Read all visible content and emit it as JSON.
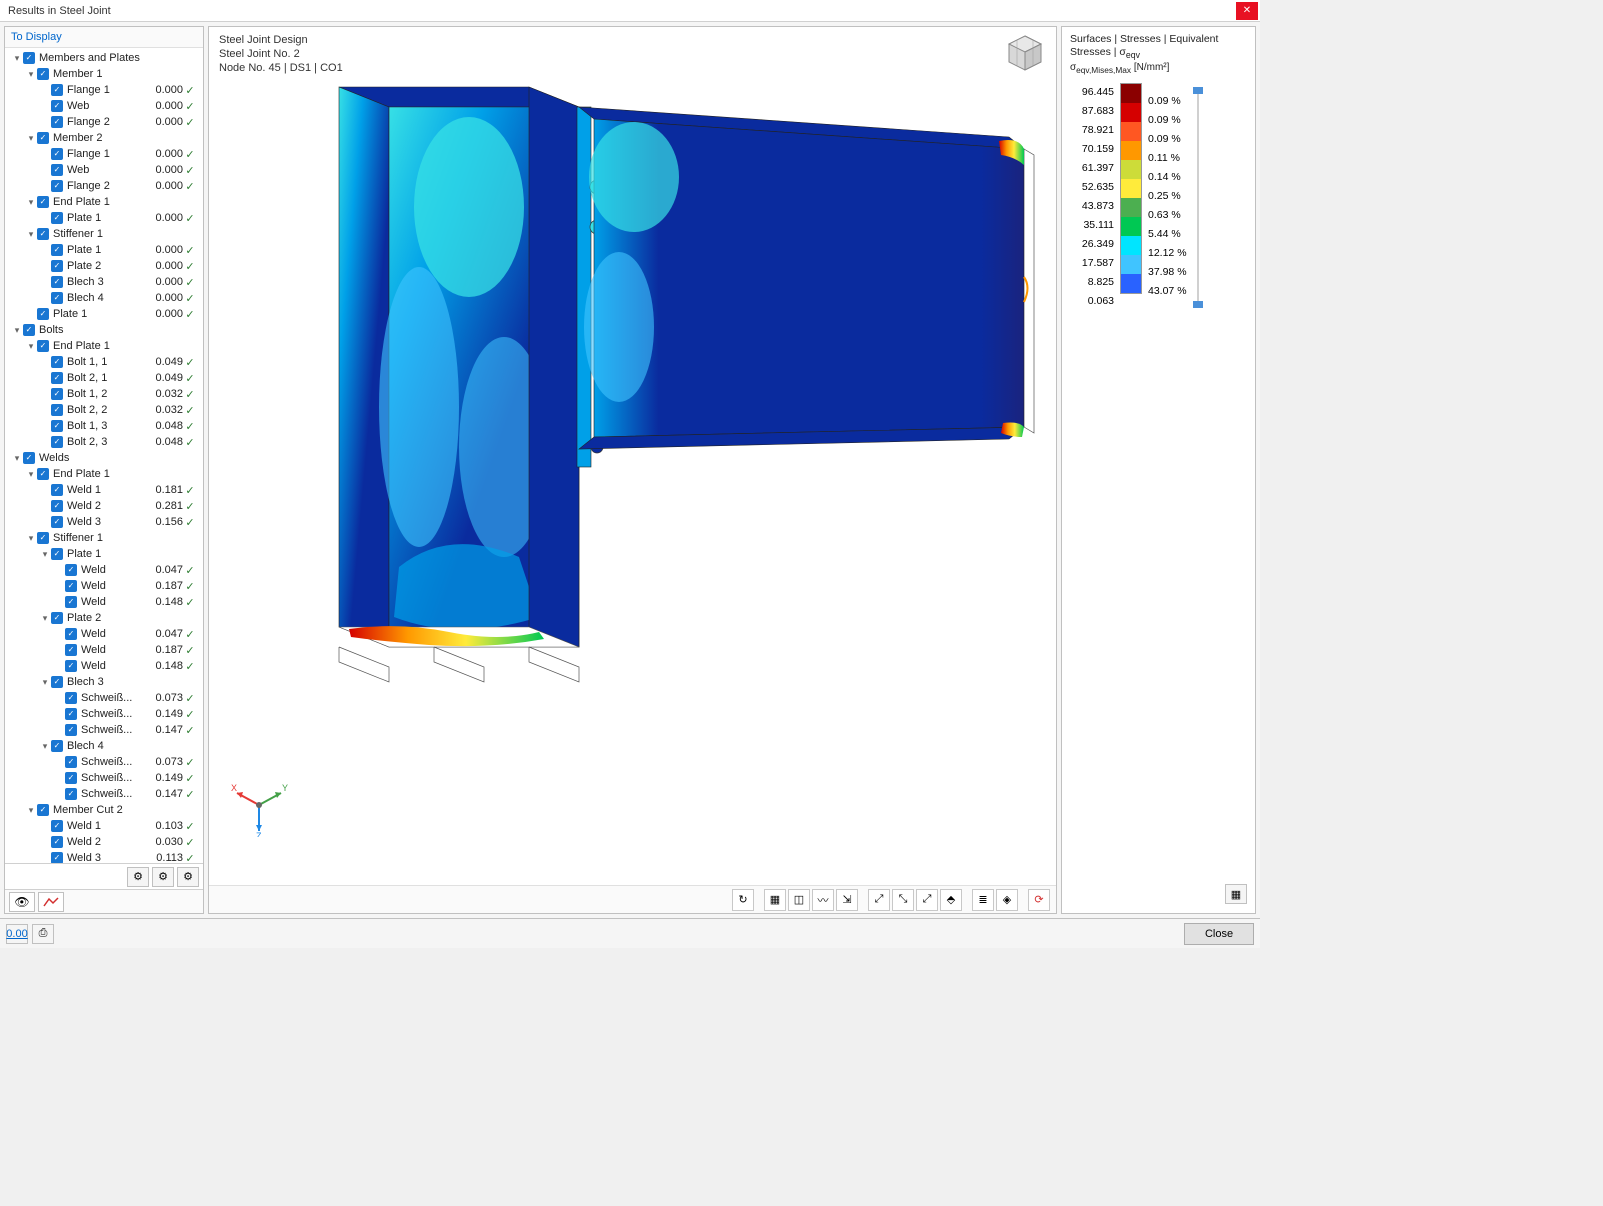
{
  "window": {
    "title": "Results in Steel Joint",
    "closeLabel": "Close"
  },
  "leftPanel": {
    "header": "To Display",
    "tree": [
      {
        "d": 0,
        "exp": "▾",
        "label": "Members and Plates"
      },
      {
        "d": 1,
        "exp": "▾",
        "label": "Member 1"
      },
      {
        "d": 2,
        "label": "Flange 1",
        "val": "0.000",
        "ok": true
      },
      {
        "d": 2,
        "label": "Web",
        "val": "0.000",
        "ok": true
      },
      {
        "d": 2,
        "label": "Flange 2",
        "val": "0.000",
        "ok": true
      },
      {
        "d": 1,
        "exp": "▾",
        "label": "Member 2"
      },
      {
        "d": 2,
        "label": "Flange 1",
        "val": "0.000",
        "ok": true
      },
      {
        "d": 2,
        "label": "Web",
        "val": "0.000",
        "ok": true
      },
      {
        "d": 2,
        "label": "Flange 2",
        "val": "0.000",
        "ok": true
      },
      {
        "d": 1,
        "exp": "▾",
        "label": "End Plate 1"
      },
      {
        "d": 2,
        "label": "Plate 1",
        "val": "0.000",
        "ok": true
      },
      {
        "d": 1,
        "exp": "▾",
        "label": "Stiffener 1"
      },
      {
        "d": 2,
        "label": "Plate 1",
        "val": "0.000",
        "ok": true
      },
      {
        "d": 2,
        "label": "Plate 2",
        "val": "0.000",
        "ok": true
      },
      {
        "d": 2,
        "label": "Blech 3",
        "val": "0.000",
        "ok": true
      },
      {
        "d": 2,
        "label": "Blech 4",
        "val": "0.000",
        "ok": true
      },
      {
        "d": 1,
        "label": "Plate 1",
        "val": "0.000",
        "ok": true
      },
      {
        "d": 0,
        "exp": "▾",
        "label": "Bolts"
      },
      {
        "d": 1,
        "exp": "▾",
        "label": "End Plate 1"
      },
      {
        "d": 2,
        "label": "Bolt 1, 1",
        "val": "0.049",
        "ok": true
      },
      {
        "d": 2,
        "label": "Bolt 2, 1",
        "val": "0.049",
        "ok": true
      },
      {
        "d": 2,
        "label": "Bolt 1, 2",
        "val": "0.032",
        "ok": true
      },
      {
        "d": 2,
        "label": "Bolt 2, 2",
        "val": "0.032",
        "ok": true
      },
      {
        "d": 2,
        "label": "Bolt 1, 3",
        "val": "0.048",
        "ok": true
      },
      {
        "d": 2,
        "label": "Bolt 2, 3",
        "val": "0.048",
        "ok": true
      },
      {
        "d": 0,
        "exp": "▾",
        "label": "Welds"
      },
      {
        "d": 1,
        "exp": "▾",
        "label": "End Plate 1"
      },
      {
        "d": 2,
        "label": "Weld 1",
        "val": "0.181",
        "ok": true
      },
      {
        "d": 2,
        "label": "Weld 2",
        "val": "0.281",
        "ok": true
      },
      {
        "d": 2,
        "label": "Weld 3",
        "val": "0.156",
        "ok": true
      },
      {
        "d": 1,
        "exp": "▾",
        "label": "Stiffener 1"
      },
      {
        "d": 2,
        "exp": "▾",
        "label": "Plate 1"
      },
      {
        "d": 3,
        "label": "Weld",
        "val": "0.047",
        "ok": true
      },
      {
        "d": 3,
        "label": "Weld",
        "val": "0.187",
        "ok": true
      },
      {
        "d": 3,
        "label": "Weld",
        "val": "0.148",
        "ok": true
      },
      {
        "d": 2,
        "exp": "▾",
        "label": "Plate 2"
      },
      {
        "d": 3,
        "label": "Weld",
        "val": "0.047",
        "ok": true
      },
      {
        "d": 3,
        "label": "Weld",
        "val": "0.187",
        "ok": true
      },
      {
        "d": 3,
        "label": "Weld",
        "val": "0.148",
        "ok": true
      },
      {
        "d": 2,
        "exp": "▾",
        "label": "Blech 3"
      },
      {
        "d": 3,
        "label": "Schweiß...",
        "val": "0.073",
        "ok": true
      },
      {
        "d": 3,
        "label": "Schweiß...",
        "val": "0.149",
        "ok": true
      },
      {
        "d": 3,
        "label": "Schweiß...",
        "val": "0.147",
        "ok": true
      },
      {
        "d": 2,
        "exp": "▾",
        "label": "Blech 4"
      },
      {
        "d": 3,
        "label": "Schweiß...",
        "val": "0.073",
        "ok": true
      },
      {
        "d": 3,
        "label": "Schweiß...",
        "val": "0.149",
        "ok": true
      },
      {
        "d": 3,
        "label": "Schweiß...",
        "val": "0.147",
        "ok": true
      },
      {
        "d": 1,
        "exp": "▾",
        "label": "Member Cut 2"
      },
      {
        "d": 2,
        "label": "Weld 1",
        "val": "0.103",
        "ok": true
      },
      {
        "d": 2,
        "label": "Weld 2",
        "val": "0.030",
        "ok": true
      },
      {
        "d": 2,
        "label": "Weld 3",
        "val": "0.113",
        "ok": true
      }
    ]
  },
  "viewport": {
    "headerLines": [
      "Steel Joint Design",
      "Steel Joint No. 2",
      "Node No. 45 | DS1 | CO1"
    ],
    "axes": {
      "x": "X",
      "y": "Y",
      "z": "Z",
      "xColor": "#e53935",
      "yColor": "#43a047",
      "zColor": "#1e88e5"
    },
    "lowStressColor": "#0a2b9e",
    "midStressColor": "#00a0e8",
    "cyanColor": "#37e0e6",
    "highColors": [
      "#00c853",
      "#ffea00",
      "#ff9100",
      "#d50000"
    ]
  },
  "legend": {
    "titleLine1": "Surfaces | Stresses | Equivalent Stresses | σ",
    "titleSub": "eqv",
    "subLine": "σ",
    "subSub": "eqv,Mises,Max",
    "unit": " [N/mm²]",
    "values": [
      "96.445",
      "87.683",
      "78.921",
      "70.159",
      "61.397",
      "52.635",
      "43.873",
      "35.111",
      "26.349",
      "17.587",
      "8.825",
      "0.063"
    ],
    "colors": [
      "#8b0000",
      "#d50000",
      "#ff5722",
      "#ff9800",
      "#cddc39",
      "#ffeb3b",
      "#4caf50",
      "#00c853",
      "#00e5ff",
      "#40c4ff",
      "#2962ff",
      "#1a237e"
    ],
    "pcts": [
      "0.09 %",
      "0.09 %",
      "0.09 %",
      "0.11 %",
      "0.14 %",
      "0.25 %",
      "0.63 %",
      "5.44 %",
      "12.12 %",
      "37.98 %",
      "43.07 %"
    ]
  }
}
